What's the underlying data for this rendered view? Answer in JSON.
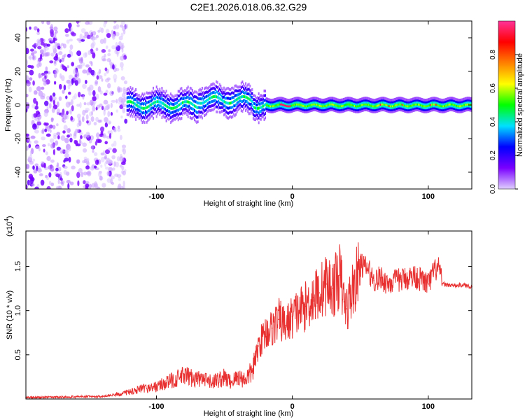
{
  "figure_title": "C2E1.2026.018.06.32.G29",
  "chart_data": [
    {
      "type": "heatmap",
      "title": "C2E1.2026.018.06.32.G29",
      "xlabel": "Height of straight line (km)",
      "ylabel": "Frequency (Hz)",
      "xlim": [
        -196,
        132
      ],
      "ylim": [
        -50,
        50
      ],
      "x_ticks": [
        -100,
        0,
        100
      ],
      "y_ticks": [
        -40,
        -20,
        0,
        20,
        40
      ],
      "colorbar": {
        "label": "Normalized spectral amplitude",
        "range": [
          0,
          1
        ],
        "ticks": [
          "0.0",
          "0.2",
          "0.4",
          "0.6",
          "0.8"
        ],
        "tick_values": [
          0.0,
          0.2,
          0.4,
          0.6,
          0.8
        ],
        "colors": [
          "#e0d0ff",
          "#7a00ff",
          "#0000ff",
          "#00e0ff",
          "#00ff00",
          "#ffff00",
          "#ff8000",
          "#ff0000",
          "#ff3399"
        ]
      },
      "description_regions": [
        {
          "x_range": [
            -196,
            -122
          ],
          "pattern": "noise",
          "freq_range": [
            -50,
            50
          ]
        },
        {
          "x_range": [
            -122,
            132
          ],
          "pattern": "signal_band",
          "center_freq": 0
        }
      ]
    },
    {
      "type": "line",
      "xlabel": "Height of straight line (km)",
      "ylabel": "SNR (10 * v/v)",
      "y_multiplier_label": "(x10",
      "y_multiplier_exp": "4",
      "xlim": [
        -196,
        132
      ],
      "ylim": [
        0,
        19000
      ],
      "x_ticks": [
        -100,
        0,
        100
      ],
      "y_ticks": [
        5000,
        10000,
        15000
      ],
      "y_tick_labels": [
        "0.5",
        "1.0",
        "1.5"
      ],
      "series_color": "#e83030",
      "series": [
        {
          "name": "SNR",
          "x": [
            -196,
            -180,
            -160,
            -140,
            -125,
            -115,
            -100,
            -90,
            -80,
            -70,
            -60,
            -50,
            -45,
            -40,
            -35,
            -30,
            -27,
            -25,
            -20,
            -15,
            -10,
            -5,
            0,
            5,
            10,
            15,
            20,
            25,
            30,
            35,
            38,
            40,
            45,
            48,
            50,
            55,
            60,
            65,
            70,
            80,
            90,
            100,
            105,
            108,
            110,
            115,
            120,
            125,
            132
          ],
          "values": [
            150,
            200,
            250,
            300,
            600,
            1000,
            1400,
            2000,
            2600,
            2300,
            1900,
            2400,
            1900,
            2500,
            2200,
            3000,
            4500,
            6000,
            7500,
            8000,
            9000,
            8300,
            9300,
            10000,
            10500,
            11500,
            12000,
            13000,
            12500,
            14000,
            11000,
            10200,
            12700,
            13800,
            15200,
            14800,
            13400,
            13700,
            13100,
            13500,
            13900,
            13000,
            14600,
            14700,
            13000,
            12900,
            12800,
            12900,
            12700
          ]
        }
      ]
    }
  ]
}
